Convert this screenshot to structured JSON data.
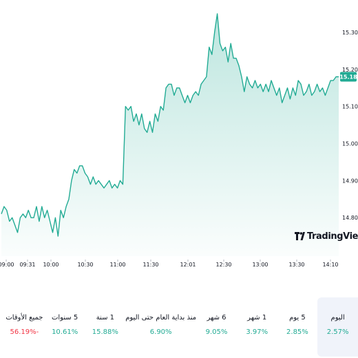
{
  "chart_data": {
    "type": "area",
    "y_ticks": [
      "15.30",
      "15.20",
      "15.10",
      "15.00",
      "14.90",
      "14.80"
    ],
    "y_tick_values": [
      15.3,
      15.2,
      15.1,
      15.0,
      14.9,
      14.8
    ],
    "ylim": [
      14.7,
      15.35
    ],
    "x_ticks": [
      "09:00",
      "09:31",
      "10:00",
      "10:30",
      "11:00",
      "11:30",
      "12:01",
      "12:30",
      "13:00",
      "13:30",
      "14:10"
    ],
    "last_price": "15.18",
    "line_color": "#22ab94",
    "fill_color": "#22ab94",
    "values": [
      14.81,
      14.83,
      14.82,
      14.79,
      14.8,
      14.78,
      14.76,
      14.8,
      14.81,
      14.8,
      14.82,
      14.8,
      14.8,
      14.83,
      14.79,
      14.83,
      14.8,
      14.82,
      14.79,
      14.76,
      14.8,
      14.75,
      14.82,
      14.8,
      14.83,
      14.85,
      14.9,
      14.93,
      14.92,
      14.94,
      14.94,
      14.92,
      14.91,
      14.89,
      14.91,
      14.89,
      14.9,
      14.89,
      14.88,
      14.89,
      14.9,
      14.88,
      14.89,
      14.88,
      14.9,
      14.89,
      15.1,
      15.09,
      15.1,
      15.06,
      15.08,
      15.05,
      15.08,
      15.04,
      15.03,
      15.06,
      15.03,
      15.08,
      15.06,
      15.1,
      15.09,
      15.15,
      15.16,
      15.16,
      15.13,
      15.15,
      15.15,
      15.13,
      15.11,
      15.13,
      15.11,
      15.13,
      15.14,
      15.13,
      15.16,
      15.17,
      15.18,
      15.26,
      15.24,
      15.3,
      15.35,
      15.27,
      15.25,
      15.26,
      15.22,
      15.27,
      15.23,
      15.23,
      15.21,
      15.18,
      15.14,
      15.18,
      15.16,
      15.15,
      15.17,
      15.15,
      15.16,
      15.14,
      15.16,
      15.14,
      15.17,
      15.15,
      15.13,
      15.15,
      15.11,
      15.13,
      15.15,
      15.12,
      15.15,
      15.13,
      15.17,
      15.16,
      15.13,
      15.14,
      15.16,
      15.13,
      15.14,
      15.16,
      15.14,
      15.15,
      15.13,
      15.15,
      15.17,
      15.17,
      15.18,
      15.18
    ]
  },
  "periods": [
    {
      "label": "اليوم",
      "value": "2.57%",
      "trend": "pos"
    },
    {
      "label": "5 يوم",
      "value": "2.85%",
      "trend": "pos"
    },
    {
      "label": "1 شهر",
      "value": "3.97%",
      "trend": "pos"
    },
    {
      "label": "6 شهر",
      "value": "9.05%",
      "trend": "pos"
    },
    {
      "label": "منذ بداية العام حتى اليوم",
      "value": "6.90%",
      "trend": "pos"
    },
    {
      "label": "1 سنة",
      "value": "15.88%",
      "trend": "pos"
    },
    {
      "label": "5 سنوات",
      "value": "10.61%",
      "trend": "pos"
    },
    {
      "label": "جميع الأوقات",
      "value": "56.19%-",
      "trend": "neg"
    }
  ],
  "watermark": {
    "text": "TradingView"
  }
}
